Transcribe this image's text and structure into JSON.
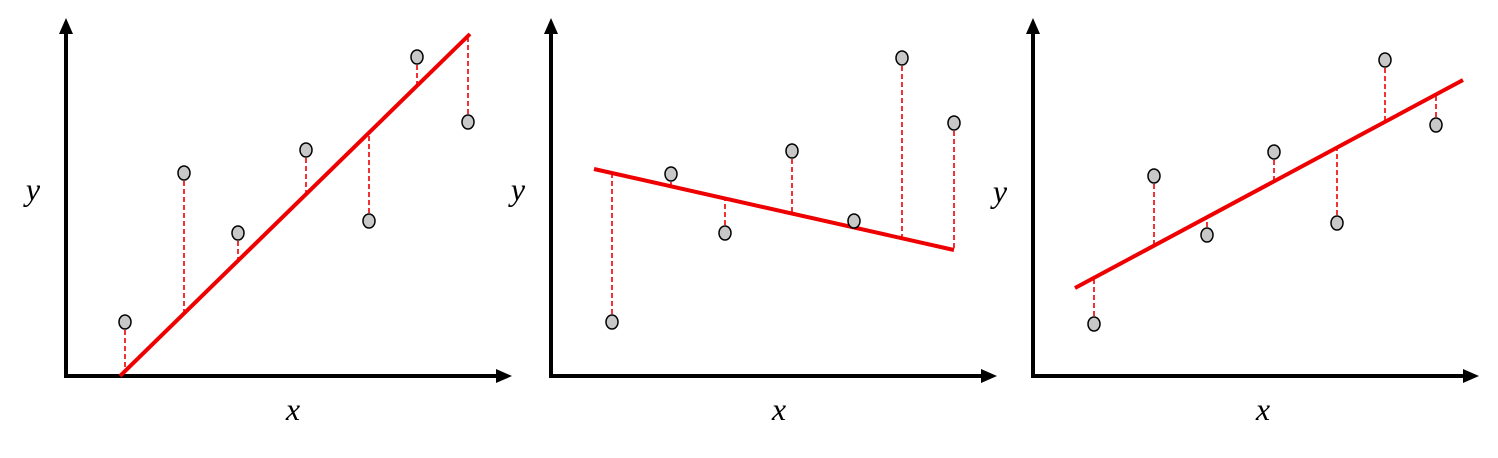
{
  "panels": [
    {
      "y_label": "y",
      "x_label": "x"
    },
    {
      "y_label": "y",
      "x_label": "x"
    },
    {
      "y_label": "y",
      "x_label": "x"
    }
  ]
}
